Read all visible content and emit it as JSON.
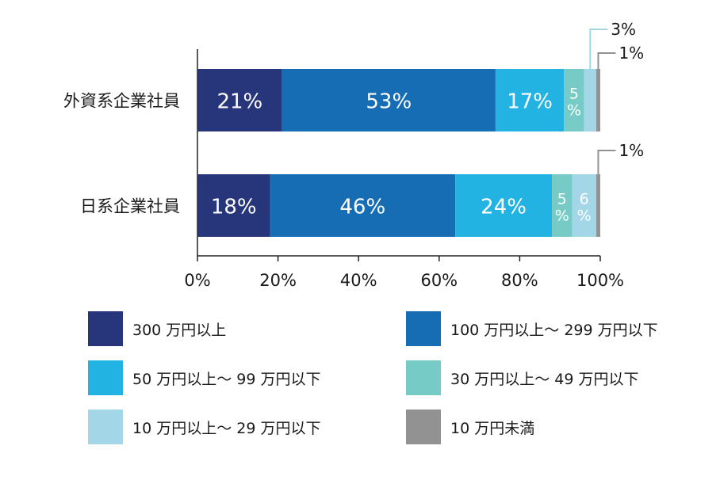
{
  "chart_data": {
    "type": "bar",
    "orientation": "horizontal",
    "stacked": true,
    "categories": [
      "外資系企業社員",
      "日系企業社員"
    ],
    "series": [
      {
        "name": "300 万円以上",
        "color": "#27357a",
        "values": [
          21,
          18
        ]
      },
      {
        "name": "100 万円以上～ 299 万円以下",
        "color": "#176db4",
        "values": [
          53,
          46
        ]
      },
      {
        "name": "50 万円以上～ 99 万円以下",
        "color": "#22b3e3",
        "values": [
          17,
          24
        ]
      },
      {
        "name": "30 万円以上～ 49 万円以下",
        "color": "#76cbc6",
        "values": [
          5,
          5
        ]
      },
      {
        "name": "10 万円以上～ 29 万円以下",
        "color": "#a3d7e8",
        "values": [
          3,
          6
        ]
      },
      {
        "name": "10 万円未満",
        "color": "#929292",
        "values": [
          1,
          1
        ]
      }
    ],
    "data_labels": [
      [
        "21%",
        "53%",
        "17%",
        "5\n%",
        "3%",
        "1%"
      ],
      [
        "18%",
        "46%",
        "24%",
        "5\n%",
        "6\n%",
        "1%"
      ]
    ],
    "xaxis": {
      "ticks": [
        0,
        20,
        40,
        60,
        80,
        100
      ],
      "tick_labels": [
        "0%",
        "20%",
        "40%",
        "60%",
        "80%",
        "100%"
      ]
    },
    "xlim": [
      0,
      100
    ],
    "grid": false,
    "legend_position": "bottom"
  }
}
